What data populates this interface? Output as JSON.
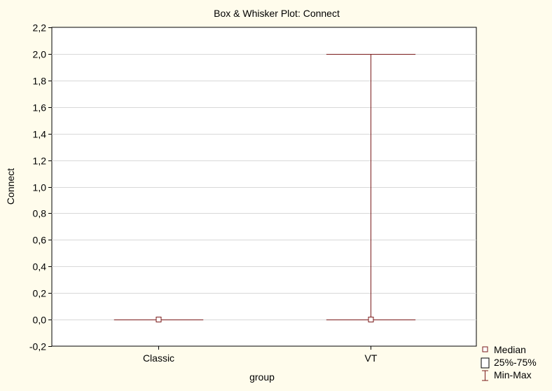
{
  "chart_data": {
    "type": "box",
    "title": "Box & Whisker Plot:  Connect",
    "xlabel": "group",
    "ylabel": "Connect",
    "ylim": [
      -0.2,
      2.2
    ],
    "yticks": [
      -0.2,
      0.0,
      0.2,
      0.4,
      0.6,
      0.8,
      1.0,
      1.2,
      1.4,
      1.6,
      1.8,
      2.0,
      2.2
    ],
    "ytick_labels": [
      "-0,2",
      "0,0",
      "0,2",
      "0,4",
      "0,6",
      "0,8",
      "1,0",
      "1,2",
      "1,4",
      "1,6",
      "1,8",
      "2,0",
      "2,2"
    ],
    "grid": true,
    "categories": [
      "Classic",
      "VT"
    ],
    "boxes": [
      {
        "category": "Classic",
        "median": 0.0,
        "q1": 0.0,
        "q3": 0.0,
        "min": 0.0,
        "max": 0.0
      },
      {
        "category": "VT",
        "median": 0.0,
        "q1": 0.0,
        "q3": 0.0,
        "min": 0.0,
        "max": 2.0
      }
    ],
    "legend": {
      "placement": "bottom-right",
      "items": [
        "Median",
        "25%-75%",
        "Min-Max"
      ]
    },
    "colors": {
      "background": "#fffcec",
      "plot_area": "#ffffff",
      "mark": "#7a1a1a",
      "grid": "#d8d8d8"
    }
  }
}
